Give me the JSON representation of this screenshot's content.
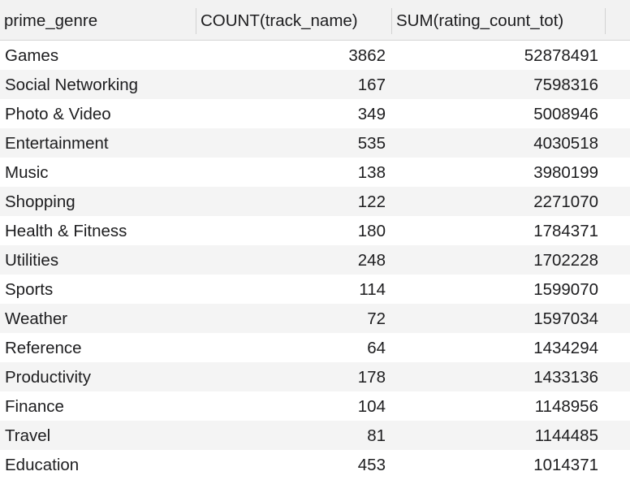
{
  "columns": [
    "prime_genre",
    "COUNT(track_name)",
    "SUM(rating_count_tot)"
  ],
  "rows": [
    [
      "Games",
      "3862",
      "52878491"
    ],
    [
      "Social Networking",
      "167",
      "7598316"
    ],
    [
      "Photo & Video",
      "349",
      "5008946"
    ],
    [
      "Entertainment",
      "535",
      "4030518"
    ],
    [
      "Music",
      "138",
      "3980199"
    ],
    [
      "Shopping",
      "122",
      "2271070"
    ],
    [
      "Health & Fitness",
      "180",
      "1784371"
    ],
    [
      "Utilities",
      "248",
      "1702228"
    ],
    [
      "Sports",
      "114",
      "1599070"
    ],
    [
      "Weather",
      "72",
      "1597034"
    ],
    [
      "Reference",
      "64",
      "1434294"
    ],
    [
      "Productivity",
      "178",
      "1433136"
    ],
    [
      "Finance",
      "104",
      "1148956"
    ],
    [
      "Travel",
      "81",
      "1144485"
    ],
    [
      "Education",
      "453",
      "1014371"
    ]
  ]
}
